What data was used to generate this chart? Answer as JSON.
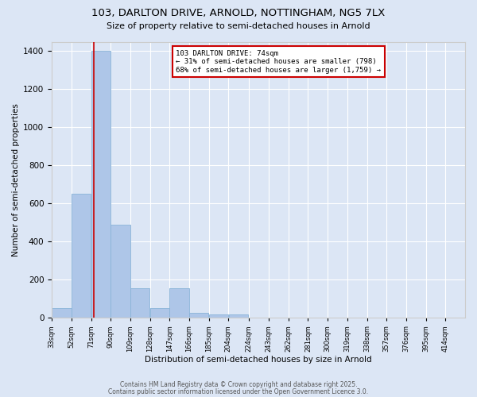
{
  "title_line1": "103, DARLTON DRIVE, ARNOLD, NOTTINGHAM, NG5 7LX",
  "title_line2": "Size of property relative to semi-detached houses in Arnold",
  "bar_values": [
    50,
    650,
    1400,
    490,
    155,
    50,
    155,
    25,
    20,
    20,
    0,
    0,
    0,
    0,
    0,
    0,
    0,
    0,
    0,
    0,
    0
  ],
  "bin_edges": [
    33,
    52,
    71,
    90,
    109,
    128,
    147,
    166,
    185,
    204,
    224,
    243,
    262,
    281,
    300,
    319,
    338,
    357,
    376,
    395,
    414
  ],
  "xlabels": [
    "33sqm",
    "52sqm",
    "71sqm",
    "90sqm",
    "109sqm",
    "128sqm",
    "147sqm",
    "166sqm",
    "185sqm",
    "204sqm",
    "224sqm",
    "243sqm",
    "262sqm",
    "281sqm",
    "300sqm",
    "319sqm",
    "338sqm",
    "357sqm",
    "376sqm",
    "395sqm",
    "414sqm"
  ],
  "ylabel": "Number of semi-detached properties",
  "xlabel": "Distribution of semi-detached houses by size in Arnold",
  "ylim": [
    0,
    1450
  ],
  "yticks": [
    0,
    200,
    400,
    600,
    800,
    1000,
    1200,
    1400
  ],
  "bar_color": "#aec6e8",
  "bar_edge_color": "#8ab4d8",
  "red_line_x": 74,
  "annotation_title": "103 DARLTON DRIVE: 74sqm",
  "annotation_line2": "← 31% of semi-detached houses are smaller (798)",
  "annotation_line3": "68% of semi-detached houses are larger (1,759) →",
  "annotation_box_color": "#ffffff",
  "annotation_border_color": "#cc0000",
  "background_color": "#dce6f5",
  "plot_bg_color": "#dce6f5",
  "footer_line1": "Contains HM Land Registry data © Crown copyright and database right 2025.",
  "footer_line2": "Contains public sector information licensed under the Open Government Licence 3.0."
}
